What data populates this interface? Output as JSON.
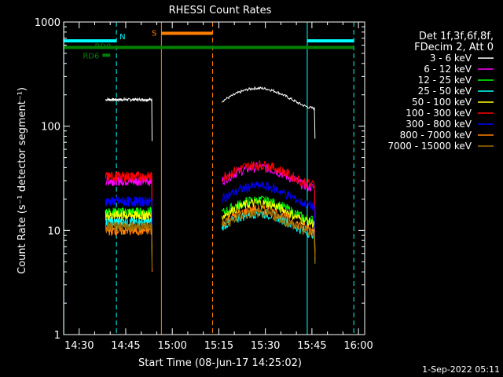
{
  "chart_data": {
    "type": "line",
    "title": "RHESSI Count Rates",
    "xlabel": "Start Time (08-Jun-17 14:25:02)",
    "ylabel": "Count Rate (s⁻¹ detector segment⁻¹)",
    "y_scale": "log",
    "ylim": [
      1,
      1000
    ],
    "xlim_minutes_after_1425": [
      0,
      97
    ],
    "x_ticks": [
      "14:30",
      "14:45",
      "15:00",
      "15:15",
      "15:30",
      "15:45",
      "16:00"
    ],
    "y_ticks": [
      "1",
      "10",
      "100",
      "1000"
    ],
    "background": "#000000",
    "legend": {
      "placement": "right",
      "header": [
        "Det 1f,3f,6f,8f,",
        "FDecim 2, Att 0"
      ]
    },
    "series": [
      {
        "name": "3 - 6 keV",
        "color": "#ffffff",
        "segments": [
          {
            "t_start": "14:38:30",
            "t_end": "14:53:30",
            "level": 180
          },
          {
            "t_start": "15:16:00",
            "t_end": "15:46:00",
            "level": 190
          }
        ]
      },
      {
        "name": "6 - 12 keV",
        "color": "#ff00ff",
        "segments": [
          {
            "t_start": "14:38:30",
            "t_end": "14:53:30",
            "level": 30
          },
          {
            "t_start": "15:16:00",
            "t_end": "15:46:00",
            "level": 33
          }
        ]
      },
      {
        "name": "12 - 25 keV",
        "color": "#00ff00",
        "segments": [
          {
            "t_start": "14:38:30",
            "t_end": "14:53:30",
            "level": 15
          },
          {
            "t_start": "15:16:00",
            "t_end": "15:46:00",
            "level": 16
          }
        ]
      },
      {
        "name": "25 - 50 keV",
        "color": "#00ffff",
        "segments": [
          {
            "t_start": "14:38:30",
            "t_end": "14:53:30",
            "level": 12
          },
          {
            "t_start": "15:16:00",
            "t_end": "15:46:00",
            "level": 12
          }
        ]
      },
      {
        "name": "50 - 100 keV",
        "color": "#ffff00",
        "segments": [
          {
            "t_start": "14:38:30",
            "t_end": "14:53:30",
            "level": 14
          },
          {
            "t_start": "15:16:00",
            "t_end": "15:46:00",
            "level": 15
          }
        ]
      },
      {
        "name": "100 - 300 keV",
        "color": "#ff0000",
        "segments": [
          {
            "t_start": "14:38:30",
            "t_end": "14:53:30",
            "level": 33
          },
          {
            "t_start": "15:16:00",
            "t_end": "15:46:00",
            "level": 35
          }
        ]
      },
      {
        "name": "300 - 800 keV",
        "color": "#0000ff",
        "segments": [
          {
            "t_start": "14:38:30",
            "t_end": "14:53:30",
            "level": 19
          },
          {
            "t_start": "15:16:00",
            "t_end": "15:46:00",
            "level": 22
          }
        ]
      },
      {
        "name": "800 - 7000 keV",
        "color": "#ff8000",
        "segments": [
          {
            "t_start": "14:38:30",
            "t_end": "14:53:30",
            "level": 10
          },
          {
            "t_start": "15:16:00",
            "t_end": "15:46:00",
            "level": 13
          }
        ]
      },
      {
        "name": "7000 - 15000 keV",
        "color": "#a07000",
        "segments": [
          {
            "t_start": "14:38:30",
            "t_end": "14:53:30",
            "level": 11
          },
          {
            "t_start": "15:16:00",
            "t_end": "15:46:00",
            "level": 12
          }
        ]
      }
    ],
    "flags": [
      {
        "label": "N",
        "color": "#00ffff",
        "intervals": [
          [
            "14:25:02",
            "14:42:00"
          ],
          [
            "15:43:30",
            "15:58:30"
          ]
        ],
        "level": 660
      },
      {
        "label": "S",
        "color": "#ff8000",
        "intervals": [
          [
            "14:56:30",
            "15:13:00"
          ]
        ],
        "level": 780
      },
      {
        "label": "RD0",
        "color": "#008000",
        "intervals": [
          [
            "14:25:02",
            "15:58:30"
          ]
        ],
        "level": 570
      },
      {
        "label": "RD6",
        "color": "#008000",
        "intervals": [
          [
            "14:37:30",
            "14:40:00"
          ]
        ],
        "level": 480
      }
    ],
    "vlines": [
      {
        "time": "14:25:02",
        "color": "#00ffff",
        "style": "solid"
      },
      {
        "time": "14:42:00",
        "color": "#00ffff",
        "style": "dashed"
      },
      {
        "time": "14:56:30",
        "color": "#ff8000",
        "style": "solid"
      },
      {
        "time": "15:13:00",
        "color": "#ff8000",
        "style": "dashed"
      },
      {
        "time": "15:43:30",
        "color": "#00ffff",
        "style": "solid"
      },
      {
        "time": "15:58:30",
        "color": "#00ffff",
        "style": "dashed"
      }
    ],
    "footer": "1-Sep-2022 05:11"
  }
}
